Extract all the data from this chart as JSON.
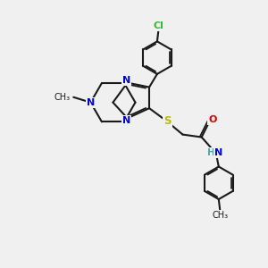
{
  "bg_color": "#f0f0f0",
  "bond_color": "#1a1a1a",
  "N_color": "#0000ee",
  "S_color": "#bbbb00",
  "O_color": "#dd0000",
  "Cl_color": "#33bb33",
  "H_color": "#44aaaa",
  "line_width": 1.5,
  "fig_size": [
    3.0,
    3.0
  ],
  "dpi": 100,
  "xlim": [
    0,
    10
  ],
  "ylim": [
    0,
    10
  ],
  "spiro_x": 4.2,
  "spiro_y": 6.2
}
